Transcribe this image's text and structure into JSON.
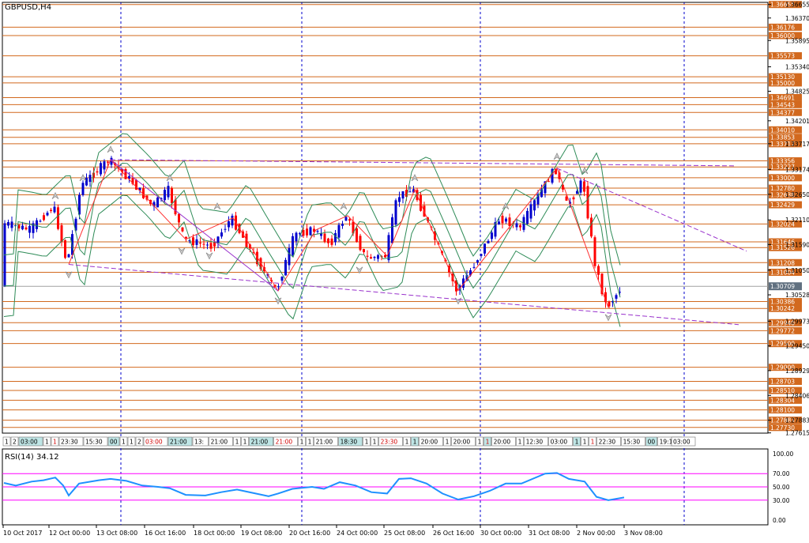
{
  "window": {
    "symbol_title": "GBPUSD,H4"
  },
  "colors": {
    "hline": "#d2691e",
    "label_bg": "#d2691e",
    "bull": "#0000cd",
    "bear": "#ff0000",
    "bands": "#2e8b57",
    "trend": "#9932cc",
    "rsi_line": "#1e90ff",
    "rsi_levels": "#ff00ff",
    "grid_v": "#0000cd",
    "current_price_bg": "#607080"
  },
  "price_axis": {
    "ticks": [
      "1.36655",
      "1.36370",
      "1.35895",
      "1.35340",
      "1.34825",
      "1.34201",
      "1.33717",
      "1.33174",
      "1.32650",
      "1.32110",
      "1.31590",
      "1.31050",
      "1.30528",
      "1.29973",
      "1.29450",
      "1.28929",
      "1.28406",
      "1.27883",
      "1.27615"
    ],
    "ymin": 1.2761,
    "ymax": 1.367
  },
  "level_labels": [
    "1.36655",
    "1.36176",
    "1.36000",
    "1.35573",
    "1.35130",
    "1.35000",
    "1.34691",
    "1.34543",
    "1.34377",
    "1.34010",
    "1.33853",
    "1.33717",
    "1.33356",
    "1.33227",
    "1.33000",
    "1.32780",
    "1.32638",
    "1.32429",
    "1.32024",
    "1.31646",
    "1.31526",
    "1.31208",
    "1.31004",
    "1.30386",
    "1.30242",
    "1.29940",
    "1.29772",
    "1.29500",
    "1.29000",
    "1.28703",
    "1.28510",
    "1.28304",
    "1.28100",
    "1.27883",
    "1.27730"
  ],
  "current_price": "1.30709",
  "time_axis": {
    "labels": [
      "10 Oct 2017",
      "12 Oct 00:00",
      "13 Oct 08:00",
      "16 Oct 16:00",
      "18 Oct 00:00",
      "19 Oct 08:00",
      "20 Oct 16:00",
      "24 Oct 00:00",
      "25 Oct 08:00",
      "26 Oct 16:00",
      "30 Oct 00:00",
      "31 Oct 08:00",
      "2 Nov 00:00",
      "3 Nov 08:00"
    ]
  },
  "session_tags": [
    "1",
    "2",
    "03:00",
    "1",
    "1",
    "23:30",
    "15:30",
    "00",
    "1",
    "1",
    "2",
    "03:00",
    "21:00",
    "13:",
    "21:00",
    "1",
    "1",
    "21:00",
    "21:00",
    "1",
    "1",
    "21:00",
    "18:30",
    "1",
    "1",
    "23:30",
    "1",
    "1",
    "20:00",
    "1",
    "20:00",
    "1",
    "1",
    "20:00",
    "1",
    "12:30",
    "03:00",
    "1",
    "1",
    "1",
    "22:30",
    "15:30",
    "00",
    "19:15",
    "03:00"
  ],
  "rsi": {
    "title": "RSI(14) 34.12",
    "axis_labels": [
      "100.00",
      "70.00",
      "50.00",
      "30.00",
      "0.00"
    ]
  },
  "chart_data": [
    {
      "type": "candlestick",
      "title": "GBPUSD,H4",
      "ylim": [
        1.2761,
        1.367
      ],
      "x_labels": [
        "10 Oct 2017",
        "12 Oct 00:00",
        "13 Oct 08:00",
        "16 Oct 16:00",
        "18 Oct 00:00",
        "19 Oct 08:00",
        "20 Oct 16:00",
        "24 Oct 00:00",
        "25 Oct 08:00",
        "26 Oct 16:00",
        "30 Oct 00:00",
        "31 Oct 08:00",
        "2 Nov 00:00",
        "3 Nov 08:00"
      ],
      "key_swings": [
        {
          "label": "swing low",
          "value": 1.3117
        },
        {
          "label": "swing high",
          "value": 1.3338
        },
        {
          "label": "swing low",
          "value": 1.3061
        },
        {
          "label": "swing high",
          "value": 1.3275
        },
        {
          "label": "swing low",
          "value": 1.3062
        },
        {
          "label": "swing high",
          "value": 1.332
        },
        {
          "label": "swing low",
          "value": 1.3026
        }
      ],
      "last_close": 1.30709
    },
    {
      "type": "line",
      "title": "RSI(14) 34.12",
      "ylim": [
        0,
        100
      ],
      "levels": [
        70,
        50,
        30
      ],
      "last_value": 34.12
    }
  ]
}
